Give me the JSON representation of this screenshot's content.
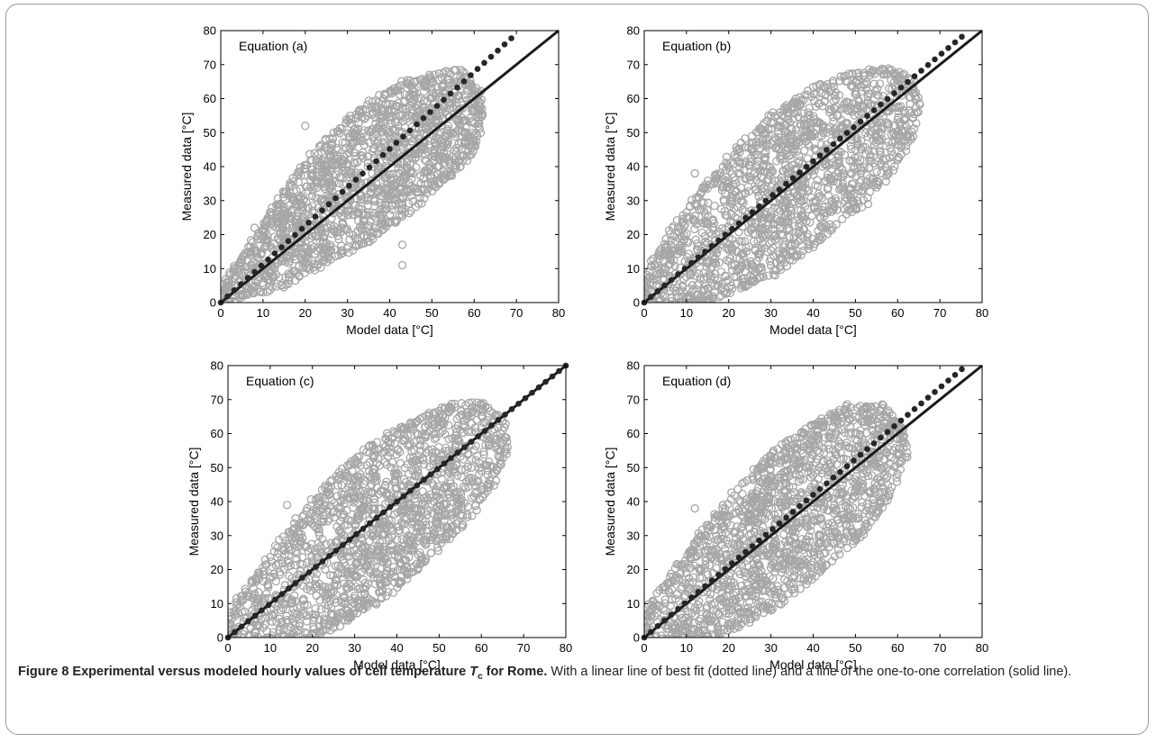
{
  "chart_data": [
    {
      "type": "scatter",
      "panel_label": "Equation (a)",
      "xlabel": "Model data [°C]",
      "ylabel": "Measured data [°C]",
      "xlim": [
        0,
        80
      ],
      "ylim": [
        0,
        80
      ],
      "xticks": [
        0,
        10,
        20,
        30,
        40,
        50,
        60,
        70,
        80
      ],
      "yticks": [
        0,
        10,
        20,
        30,
        40,
        50,
        60,
        70,
        80
      ],
      "scatter_cloud": [
        [
          1,
          0
        ],
        [
          8,
          3
        ],
        [
          15,
          5
        ],
        [
          25,
          12
        ],
        [
          35,
          18
        ],
        [
          45,
          27
        ],
        [
          55,
          38
        ],
        [
          60,
          45
        ],
        [
          62,
          55
        ],
        [
          61,
          62
        ],
        [
          57,
          68
        ],
        [
          50,
          67
        ],
        [
          42,
          64
        ],
        [
          33,
          57
        ],
        [
          25,
          48
        ],
        [
          18,
          38
        ],
        [
          12,
          27
        ],
        [
          6,
          15
        ],
        [
          2,
          8
        ],
        [
          0,
          3
        ]
      ],
      "outliers": [
        [
          20,
          52
        ],
        [
          43,
          17
        ],
        [
          43,
          11
        ],
        [
          45,
          38
        ],
        [
          8,
          22
        ],
        [
          10,
          3
        ]
      ],
      "fit_slope": 1.13,
      "fit_line": {
        "x": [
          0,
          70
        ],
        "y": [
          0,
          79
        ]
      },
      "identity_line": {
        "x": [
          0,
          80
        ],
        "y": [
          0,
          80
        ]
      }
    },
    {
      "type": "scatter",
      "panel_label": "Equation (b)",
      "xlabel": "Model data [°C]",
      "ylabel": "Measured data [°C]",
      "xlim": [
        0,
        80
      ],
      "ylim": [
        0,
        80
      ],
      "xticks": [
        0,
        10,
        20,
        30,
        40,
        50,
        60,
        70,
        80
      ],
      "yticks": [
        0,
        10,
        20,
        30,
        40,
        50,
        60,
        70,
        80
      ],
      "scatter_cloud": [
        [
          0,
          0
        ],
        [
          8,
          0
        ],
        [
          14,
          0
        ],
        [
          20,
          3
        ],
        [
          30,
          8
        ],
        [
          40,
          17
        ],
        [
          50,
          27
        ],
        [
          58,
          38
        ],
        [
          63,
          48
        ],
        [
          65,
          58
        ],
        [
          63,
          66
        ],
        [
          57,
          69
        ],
        [
          48,
          67
        ],
        [
          40,
          63
        ],
        [
          30,
          55
        ],
        [
          22,
          45
        ],
        [
          14,
          34
        ],
        [
          7,
          22
        ],
        [
          2,
          12
        ],
        [
          0,
          5
        ]
      ],
      "outliers": [
        [
          12,
          38
        ],
        [
          45,
          28
        ],
        [
          53,
          29
        ],
        [
          24,
          5
        ],
        [
          31,
          8
        ]
      ],
      "fit_slope": 1.04,
      "fit_line": {
        "x": [
          0,
          76
        ],
        "y": [
          0,
          79
        ]
      },
      "identity_line": {
        "x": [
          0,
          80
        ],
        "y": [
          0,
          80
        ]
      }
    },
    {
      "type": "scatter",
      "panel_label": "Equation (c)",
      "xlabel": "Model data [°C]",
      "ylabel": "Measured data [°C]",
      "xlim": [
        0,
        80
      ],
      "ylim": [
        0,
        80
      ],
      "xticks": [
        0,
        10,
        20,
        30,
        40,
        50,
        60,
        70,
        80
      ],
      "yticks": [
        0,
        10,
        20,
        30,
        40,
        50,
        60,
        70,
        80
      ],
      "scatter_cloud": [
        [
          0,
          0
        ],
        [
          10,
          0
        ],
        [
          18,
          0
        ],
        [
          25,
          3
        ],
        [
          35,
          10
        ],
        [
          45,
          20
        ],
        [
          55,
          32
        ],
        [
          62,
          44
        ],
        [
          66,
          55
        ],
        [
          65,
          64
        ],
        [
          60,
          69
        ],
        [
          52,
          68
        ],
        [
          43,
          63
        ],
        [
          33,
          56
        ],
        [
          24,
          46
        ],
        [
          16,
          34
        ],
        [
          9,
          22
        ],
        [
          3,
          12
        ],
        [
          0,
          4
        ]
      ],
      "outliers": [
        [
          14,
          39
        ],
        [
          17,
          33
        ],
        [
          50,
          29
        ],
        [
          25,
          5
        ],
        [
          28,
          8
        ]
      ],
      "fit_slope": 1.0,
      "fit_line": {
        "x": [
          0,
          80
        ],
        "y": [
          0,
          80
        ]
      },
      "identity_line": {
        "x": [
          0,
          80
        ],
        "y": [
          0,
          80
        ]
      }
    },
    {
      "type": "scatter",
      "panel_label": "Equation (d)",
      "xlabel": "Model data [°C]",
      "ylabel": "Measured data [°C]",
      "xlim": [
        0,
        80
      ],
      "ylim": [
        0,
        80
      ],
      "xticks": [
        0,
        10,
        20,
        30,
        40,
        50,
        60,
        70,
        80
      ],
      "yticks": [
        0,
        10,
        20,
        30,
        40,
        50,
        60,
        70,
        80
      ],
      "scatter_cloud": [
        [
          0,
          0
        ],
        [
          8,
          0
        ],
        [
          15,
          0
        ],
        [
          22,
          3
        ],
        [
          32,
          10
        ],
        [
          42,
          20
        ],
        [
          52,
          30
        ],
        [
          58,
          42
        ],
        [
          62,
          53
        ],
        [
          61,
          62
        ],
        [
          56,
          68
        ],
        [
          48,
          68
        ],
        [
          40,
          63
        ],
        [
          31,
          55
        ],
        [
          23,
          45
        ],
        [
          15,
          33
        ],
        [
          8,
          21
        ],
        [
          2,
          11
        ],
        [
          0,
          4
        ]
      ],
      "outliers": [
        [
          12,
          38
        ],
        [
          50,
          29
        ],
        [
          24,
          5
        ],
        [
          30,
          8
        ],
        [
          45,
          28
        ]
      ],
      "fit_slope": 1.05,
      "fit_line": {
        "x": [
          0,
          76
        ],
        "y": [
          0,
          79
        ]
      },
      "identity_line": {
        "x": [
          0,
          80
        ],
        "y": [
          0,
          80
        ]
      }
    }
  ],
  "caption": {
    "title_prefix": "Figure 8 Experimental versus modeled hourly values of cell temperature ",
    "title_symbol": "T",
    "title_subscript": "c",
    "title_suffix": " for Rome.",
    "body": " With a linear line of best fit (dotted line) and a line of the one-to-one correlation (solid line)."
  },
  "colors": {
    "scatter": "#a6a6a6",
    "fit_marker": "#262626",
    "identity_line": "#1a1a1a"
  }
}
